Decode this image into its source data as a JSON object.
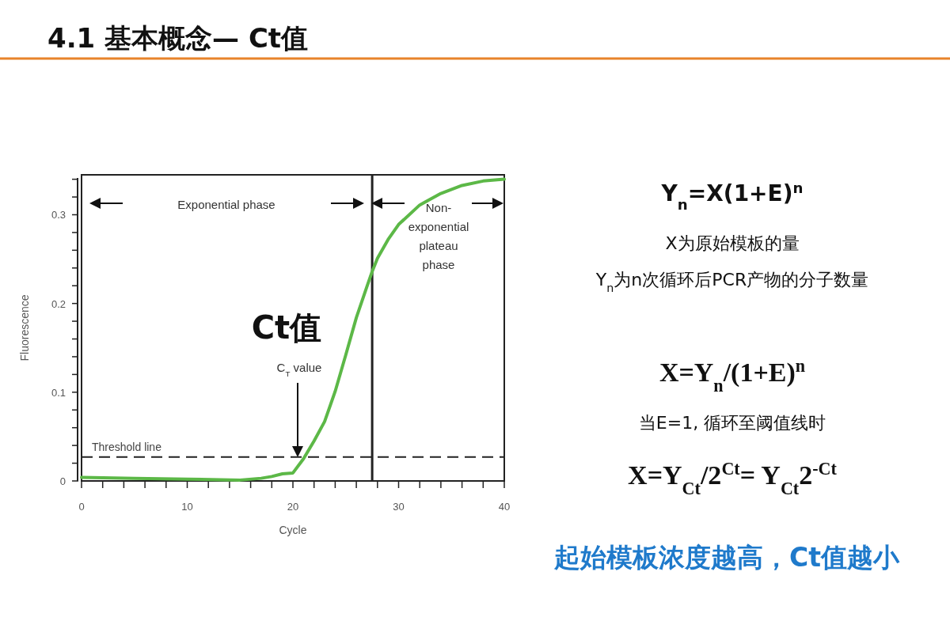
{
  "chart_data": {
    "type": "line",
    "title": "4.1 基本概念— Ct值",
    "xlabel": "Cycle",
    "ylabel": "Fluorescence",
    "x": [
      0,
      5,
      10,
      15,
      17,
      18,
      19,
      20,
      21,
      22,
      23,
      24,
      25,
      26,
      27,
      27.5,
      28,
      29,
      30,
      32,
      34,
      36,
      38,
      40
    ],
    "series": [
      {
        "color": "#5cb847",
        "values": [
          0.004,
          0.003,
          0.002,
          0.001,
          0.003,
          0.005,
          0.008,
          0.009,
          0.025,
          0.045,
          0.067,
          0.101,
          0.142,
          0.184,
          0.219,
          0.236,
          0.251,
          0.272,
          0.289,
          0.311,
          0.324,
          0.333,
          0.338,
          0.34
        ]
      }
    ],
    "xlim": [
      0,
      40
    ],
    "ylim": [
      0,
      0.345
    ],
    "xticks": [
      0,
      {
        "value": 2,
        "label": null
      },
      {
        "value": 4,
        "label": null
      },
      {
        "value": 6,
        "label": null
      },
      {
        "value": 8,
        "label": null
      },
      10,
      {
        "value": 12,
        "label": null
      },
      {
        "value": 14,
        "label": null
      },
      {
        "value": 16,
        "label": null
      },
      {
        "value": 18,
        "label": null
      },
      20,
      {
        "value": 22,
        "label": null
      },
      {
        "value": 24,
        "label": null
      },
      {
        "value": 26,
        "label": null
      },
      {
        "value": 28,
        "label": null
      },
      30,
      {
        "value": 32,
        "label": null
      },
      {
        "value": 34,
        "label": null
      },
      {
        "value": 36,
        "label": null
      },
      {
        "value": 38,
        "label": null
      },
      40
    ],
    "yticks": [
      0,
      {
        "value": 0.02,
        "label": null
      },
      {
        "value": 0.04,
        "label": null
      },
      {
        "value": 0.06,
        "label": null
      },
      {
        "value": 0.08,
        "label": null
      },
      0.1,
      {
        "value": 0.12,
        "label": null
      },
      {
        "value": 0.14,
        "label": null
      },
      {
        "value": 0.16,
        "label": null
      },
      {
        "value": 0.18,
        "label": null
      },
      0.2,
      {
        "value": 0.22,
        "label": null
      },
      {
        "value": 0.24,
        "label": null
      },
      {
        "value": 0.26,
        "label": null
      },
      {
        "value": 0.28,
        "label": null
      },
      0.3,
      {
        "value": 0.32,
        "label": null
      },
      {
        "value": 0.34,
        "label": null
      }
    ],
    "ref_lines": [
      {
        "axis": "y",
        "value": 0.027,
        "label": "Threshold line",
        "color": "#222222",
        "line_style": "dashed"
      },
      {
        "axis": "x",
        "value": 27.5,
        "color": "#222222",
        "line_style": "solid"
      }
    ],
    "annotations": [
      "Exponential phase",
      "Non-exponential plateau phase",
      "C$_{T}$ value",
      "Ct值",
      "Y$_{n}$=X(1+E)$^{n}$",
      "X为原始模板的量",
      "Y$_{n}$为n次循环后PCR产物的分子数量",
      "X=Y$_{n}$/(1+E)$^{n}$",
      "当E=1, 循环至阈值线时",
      "X=Y$_{Ct}$/2$^{Ct}$= Y$_{Ct}$2$^{-Ct}$",
      "起始模板浓度越高，Ct值越小"
    ],
    "marker": "none",
    "line_style": "solid"
  }
}
